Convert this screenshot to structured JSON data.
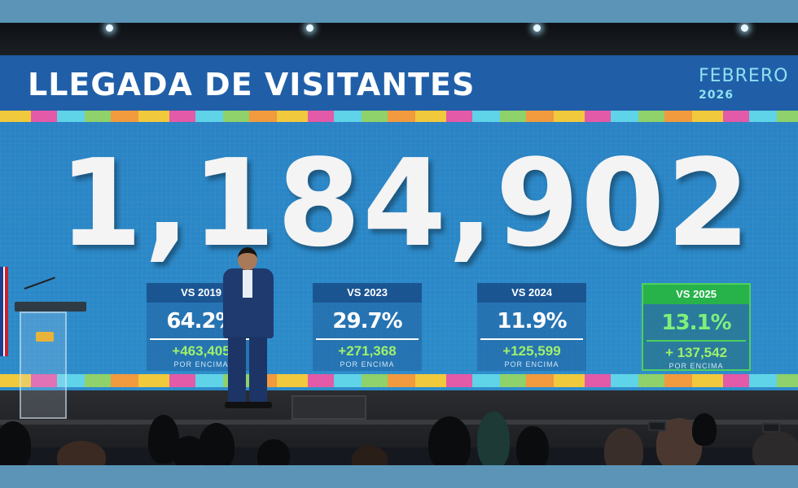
{
  "screen": {
    "title": "LLEGADA DE VISITANTES",
    "month": "FEBRERO",
    "year": "2026",
    "total_visitors": "1,184,902",
    "comparisons": [
      {
        "label": "VS 2019",
        "percent": "64.2%",
        "delta": "+463,405",
        "note": "POR ENCIMA"
      },
      {
        "label": "VS 2023",
        "percent": "29.7%",
        "delta": "+271,368",
        "note": "POR ENCIMA"
      },
      {
        "label": "VS 2024",
        "percent": "11.9%",
        "delta": "+125,599",
        "note": "POR ENCIMA"
      },
      {
        "label": "VS 2025",
        "percent": "13.1%",
        "delta": "+ 137,542",
        "note": "POR ENCIMA",
        "highlighted": true
      }
    ]
  },
  "colors": {
    "frame": "#5b94b7",
    "screen_blue": "#2a86c6",
    "title_bar": "#205fa8",
    "delta_green": "#9ff06b",
    "highlight_green": "#27b34a",
    "month_cyan": "#8fe0f2"
  }
}
